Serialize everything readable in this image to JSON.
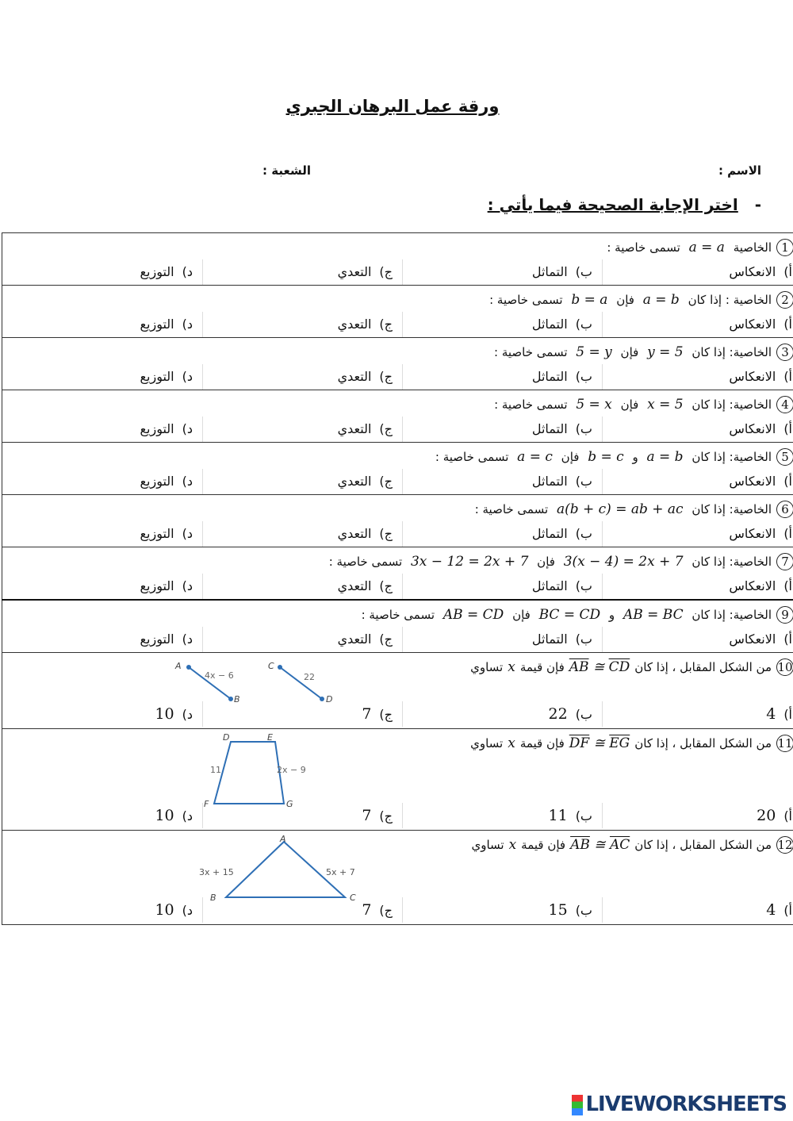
{
  "title": "ورقة عمل البرهان الجبري",
  "name_label": "الاسم :",
  "section_label": "الشعبة :",
  "instruction_dash": "-",
  "instruction": "اختر الإجابة الصحيحة فيما يأتي :",
  "property_options": [
    "الانعكاس",
    "التماثل",
    "التعدي",
    "التوزيع"
  ],
  "letters": [
    "أ)",
    "ب)",
    "ج)",
    "د)"
  ],
  "questions": [
    {
      "num": "1",
      "parts": [
        [
          "t",
          "الخاصية"
        ],
        [
          "m",
          "a = a"
        ],
        [
          "t",
          "تسمى خاصية :"
        ]
      ]
    },
    {
      "num": "2",
      "parts": [
        [
          "t",
          "الخاصية : إذا كان"
        ],
        [
          "m",
          "a = b"
        ],
        [
          "t",
          "فإن"
        ],
        [
          "m",
          "b = a"
        ],
        [
          "t",
          "تسمى خاصية :"
        ]
      ]
    },
    {
      "num": "3",
      "parts": [
        [
          "t",
          "الخاصية: إذا كان"
        ],
        [
          "m",
          "y = 5"
        ],
        [
          "t",
          "فإن"
        ],
        [
          "m",
          "5 = y"
        ],
        [
          "t",
          "تسمى خاصية :"
        ]
      ]
    },
    {
      "num": "4",
      "parts": [
        [
          "t",
          "الخاصية: إذا كان"
        ],
        [
          "m",
          "x = 5"
        ],
        [
          "t",
          "فإن"
        ],
        [
          "m",
          "5 = x"
        ],
        [
          "t",
          "تسمى خاصية :"
        ]
      ]
    },
    {
      "num": "5",
      "parts": [
        [
          "t",
          "الخاصية: إذا كان"
        ],
        [
          "m",
          "a = b"
        ],
        [
          "t",
          "و"
        ],
        [
          "m",
          "b = c"
        ],
        [
          "t",
          "فإن"
        ],
        [
          "m",
          "a = c"
        ],
        [
          "t",
          "تسمى خاصية :"
        ]
      ]
    },
    {
      "num": "6",
      "parts": [
        [
          "t",
          "الخاصية: إذا كان"
        ],
        [
          "m",
          "a(b + c) = ab + ac"
        ],
        [
          "t",
          "تسمى خاصية :"
        ]
      ]
    },
    {
      "num": "7",
      "parts": [
        [
          "t",
          "الخاصية: إذا كان"
        ],
        [
          "m",
          "3(x − 4) = 2x + 7"
        ],
        [
          "t",
          "فإن"
        ],
        [
          "m",
          "3x − 12 = 2x + 7"
        ],
        [
          "t",
          "تسمى خاصية :"
        ]
      ]
    },
    {
      "num": "9",
      "parts": [
        [
          "t",
          "الخاصية: إذا كان"
        ],
        [
          "m",
          "AB = BC"
        ],
        [
          "t",
          "و"
        ],
        [
          "m",
          "BC = CD"
        ],
        [
          "t",
          "فإن"
        ],
        [
          "m",
          "AB = CD"
        ],
        [
          "t",
          "تسمى خاصية :"
        ]
      ]
    }
  ],
  "figure_questions": [
    {
      "num": "10",
      "text": "من الشكل المقابل ، إذا كان",
      "seg1": "CD",
      "seg2": "AB",
      "text2": "فإن قيمة",
      "var": "x",
      "text3": "تساوي",
      "values": [
        "4",
        "22",
        "7",
        "10"
      ],
      "figure": {
        "labels": [
          "A",
          "B",
          "C",
          "D",
          "4x − 6",
          "22"
        ]
      }
    },
    {
      "num": "11",
      "text": "من الشكل المقابل ، إذا كان",
      "seg1": "EG",
      "seg2": "DF",
      "text2": "فإن قيمة",
      "var": "x",
      "text3": "تساوي",
      "values": [
        "20",
        "11",
        "7",
        "10"
      ],
      "figure": {
        "labels": [
          "D",
          "E",
          "F",
          "G",
          "11",
          "2x − 9"
        ]
      }
    },
    {
      "num": "12",
      "text": "من الشكل المقابل ، إذا كان",
      "seg1": "AC",
      "seg2": "AB",
      "text2": "فإن قيمة",
      "var": "x",
      "text3": "تساوي",
      "values": [
        "4",
        "15",
        "7",
        "10"
      ],
      "figure": {
        "labels": [
          "A",
          "B",
          "C",
          "3x + 15",
          "5x + 7"
        ]
      }
    }
  ],
  "colors": {
    "figure_line": "#2e6fb5"
  },
  "logo": "LIVEWORKSHEETS"
}
